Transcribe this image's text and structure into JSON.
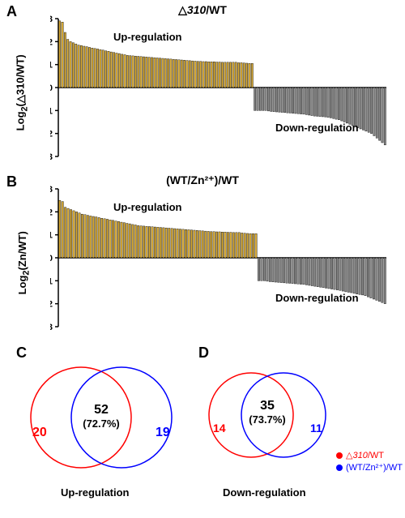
{
  "panelA": {
    "label": "A",
    "title_prefix": "△",
    "title_italic": "310",
    "title_suffix": "/WT",
    "ylabel_prefix": "Log",
    "ylabel_sub": "2",
    "ylabel_paren": "(△310/WT)",
    "up_annotation": "Up-regulation",
    "down_annotation": "Down-regulation",
    "ylim": [
      -3,
      3
    ],
    "yticks": [
      -3,
      -2,
      -1,
      0,
      1,
      2,
      3
    ],
    "n_up": 72,
    "n_down": 49,
    "up_color": "#d6a935",
    "down_color": "#888888",
    "border_color": "#000000",
    "up_values": [
      2.9,
      2.85,
      2.4,
      2.1,
      2.0,
      1.95,
      1.9,
      1.85,
      1.83,
      1.8,
      1.78,
      1.75,
      1.72,
      1.7,
      1.68,
      1.65,
      1.63,
      1.6,
      1.58,
      1.55,
      1.53,
      1.5,
      1.48,
      1.45,
      1.43,
      1.4,
      1.39,
      1.38,
      1.37,
      1.36,
      1.35,
      1.34,
      1.33,
      1.32,
      1.31,
      1.3,
      1.29,
      1.28,
      1.27,
      1.26,
      1.25,
      1.24,
      1.23,
      1.22,
      1.21,
      1.2,
      1.19,
      1.18,
      1.17,
      1.16,
      1.15,
      1.14,
      1.14,
      1.13,
      1.13,
      1.12,
      1.12,
      1.12,
      1.11,
      1.11,
      1.1,
      1.1,
      1.1,
      1.1,
      1.1,
      1.1,
      1.08,
      1.08,
      1.07,
      1.06,
      1.05,
      1.05
    ],
    "down_values": [
      -1.0,
      -1.0,
      -1.0,
      -1.0,
      -1.0,
      -1.02,
      -1.04,
      -1.05,
      -1.06,
      -1.07,
      -1.08,
      -1.09,
      -1.1,
      -1.11,
      -1.12,
      -1.13,
      -1.14,
      -1.15,
      -1.16,
      -1.18,
      -1.2,
      -1.22,
      -1.24,
      -1.25,
      -1.26,
      -1.27,
      -1.28,
      -1.3,
      -1.32,
      -1.35,
      -1.38,
      -1.4,
      -1.45,
      -1.5,
      -1.55,
      -1.6,
      -1.65,
      -1.7,
      -1.75,
      -1.8,
      -1.85,
      -1.9,
      -1.95,
      -2.0,
      -2.1,
      -2.2,
      -2.3,
      -2.4,
      -2.5
    ]
  },
  "panelB": {
    "label": "B",
    "title": "(WT/Zn²⁺)/WT",
    "ylabel_prefix": "Log",
    "ylabel_sub": "2",
    "ylabel_paren": "(Zn/WT)",
    "up_annotation": "Up-regulation",
    "down_annotation": "Down-regulation",
    "ylim": [
      -3,
      3
    ],
    "yticks": [
      -3,
      -2,
      -1,
      0,
      1,
      2,
      3
    ],
    "n_up": 71,
    "n_down": 46,
    "up_color": "#d6a935",
    "down_color": "#888888",
    "border_color": "#000000",
    "up_values": [
      2.5,
      2.45,
      2.2,
      2.15,
      2.1,
      2.05,
      2.0,
      1.95,
      1.9,
      1.88,
      1.85,
      1.82,
      1.8,
      1.78,
      1.75,
      1.72,
      1.7,
      1.68,
      1.65,
      1.63,
      1.6,
      1.58,
      1.55,
      1.53,
      1.5,
      1.48,
      1.45,
      1.43,
      1.4,
      1.39,
      1.38,
      1.37,
      1.36,
      1.35,
      1.34,
      1.33,
      1.32,
      1.31,
      1.3,
      1.29,
      1.28,
      1.27,
      1.26,
      1.25,
      1.24,
      1.23,
      1.22,
      1.21,
      1.2,
      1.19,
      1.18,
      1.17,
      1.16,
      1.15,
      1.14,
      1.14,
      1.13,
      1.13,
      1.12,
      1.12,
      1.11,
      1.11,
      1.1,
      1.1,
      1.1,
      1.08,
      1.07,
      1.06,
      1.05,
      1.05,
      1.05
    ],
    "down_values": [
      -1.0,
      -1.0,
      -1.0,
      -1.02,
      -1.04,
      -1.05,
      -1.06,
      -1.07,
      -1.08,
      -1.09,
      -1.1,
      -1.11,
      -1.12,
      -1.13,
      -1.14,
      -1.15,
      -1.16,
      -1.18,
      -1.2,
      -1.22,
      -1.24,
      -1.26,
      -1.28,
      -1.3,
      -1.32,
      -1.34,
      -1.36,
      -1.38,
      -1.4,
      -1.42,
      -1.45,
      -1.48,
      -1.5,
      -1.52,
      -1.55,
      -1.58,
      -1.6,
      -1.62,
      -1.65,
      -1.7,
      -1.75,
      -1.8,
      -1.85,
      -1.9,
      -1.95,
      -2.0
    ]
  },
  "panelC": {
    "label": "C",
    "center_num": "52",
    "center_pct": "(72.7%)",
    "left_num": "20",
    "right_num": "19",
    "left_color": "#ff0000",
    "right_color": "#0000ff",
    "bottom": "Up-regulation"
  },
  "panelD": {
    "label": "D",
    "center_num": "35",
    "center_pct": "(73.7%)",
    "left_num": "14",
    "right_num": "11",
    "left_color": "#ff0000",
    "right_color": "#0000ff",
    "bottom": "Down-regulation"
  },
  "legend": {
    "item1_prefix": "△",
    "item1_italic": "310",
    "item1_suffix": "/WT",
    "item2": "(WT/Zn²⁺)/WT",
    "color1": "#ff0000",
    "color2": "#0000ff"
  }
}
